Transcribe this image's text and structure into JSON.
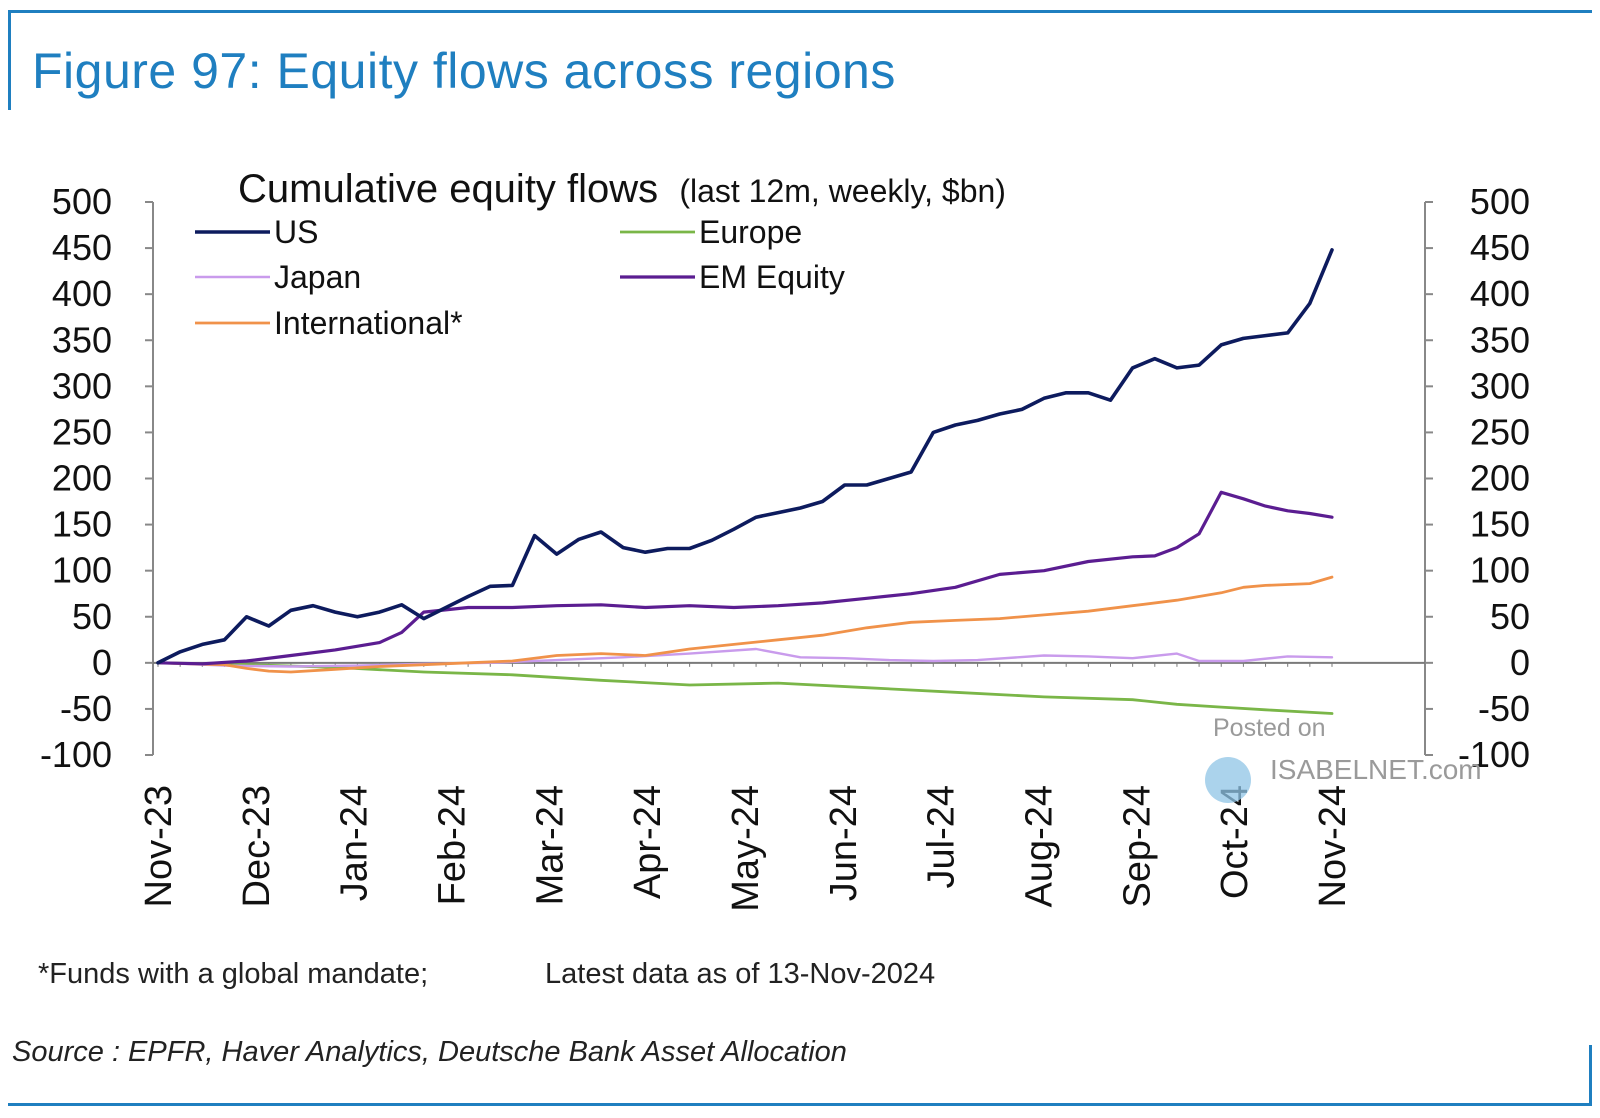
{
  "figure_title": "Figure 97: Equity flows across regions",
  "footnote_funds": "*Funds with a global mandate;",
  "footnote_latest": "Latest data as of 13-Nov-2024",
  "source": "Source : EPFR, Haver Analytics, Deutsche Bank Asset Allocation",
  "watermark": {
    "line1": "Posted on",
    "line2": "ISABELNET.com"
  },
  "colors": {
    "accent": "#1f7fc0"
  },
  "chart_data": {
    "type": "line",
    "title": "Cumulative equity flows",
    "subtitle": "(last 12m, weekly, $bn)",
    "xlabel": "",
    "ylabel": "",
    "ylim": [
      -100,
      500
    ],
    "yticks": [
      -100,
      -50,
      0,
      50,
      100,
      150,
      200,
      250,
      300,
      350,
      400,
      450,
      500
    ],
    "y_axes": "left and right (same scale)",
    "x_tick_labels": [
      "Nov-23",
      "Dec-23",
      "Jan-24",
      "Feb-24",
      "Mar-24",
      "Apr-24",
      "May-24",
      "Jun-24",
      "Jul-24",
      "Aug-24",
      "Sep-24",
      "Oct-24",
      "Nov-24"
    ],
    "x_week_range": [
      0,
      53
    ],
    "grid": false,
    "legend": "top-left, two columns",
    "series": [
      {
        "name": "US",
        "color": "#0d1b5e",
        "width": 3.6,
        "x": [
          0,
          1,
          2,
          3,
          4,
          5,
          6,
          7,
          8,
          9,
          10,
          11,
          12,
          13,
          14,
          15,
          16,
          17,
          18,
          19,
          20,
          21,
          22,
          23,
          24,
          25,
          26,
          27,
          28,
          29,
          30,
          31,
          32,
          33,
          34,
          35,
          36,
          37,
          38,
          39,
          40,
          41,
          42,
          43,
          44,
          45,
          46,
          47,
          48,
          49,
          50,
          51,
          52,
          53
        ],
        "values": [
          0,
          12,
          20,
          25,
          50,
          40,
          57,
          62,
          55,
          50,
          55,
          63,
          48,
          60,
          72,
          83,
          84,
          138,
          118,
          134,
          142,
          125,
          120,
          124,
          124,
          133,
          145,
          158,
          163,
          168,
          175,
          193,
          193,
          200,
          207,
          250,
          258,
          263,
          270,
          275,
          287,
          293,
          293,
          285,
          320,
          330,
          320,
          323,
          345,
          352,
          355,
          358,
          390,
          448
        ]
      },
      {
        "name": "Europe",
        "color": "#7ab648",
        "width": 2.8,
        "x": [
          0,
          4,
          8,
          12,
          16,
          20,
          24,
          28,
          32,
          36,
          40,
          44,
          46,
          48,
          50,
          53
        ],
        "values": [
          0,
          -2,
          -5,
          -10,
          -13,
          -19,
          -24,
          -22,
          -27,
          -32,
          -37,
          -40,
          -45,
          -48,
          -51,
          -55
        ]
      },
      {
        "name": "Japan",
        "color": "#c99bec",
        "width": 2.4,
        "x": [
          0,
          3,
          6,
          9,
          12,
          15,
          18,
          21,
          24,
          27,
          29,
          31,
          33,
          35,
          37,
          40,
          42,
          44,
          46,
          47,
          49,
          51,
          53
        ],
        "values": [
          0,
          -3,
          -4,
          -3,
          -1,
          0,
          3,
          6,
          10,
          15,
          6,
          5,
          3,
          2,
          3,
          8,
          7,
          5,
          10,
          2,
          2,
          7,
          6
        ]
      },
      {
        "name": "EM Equity",
        "color": "#5b1d91",
        "width": 3.2,
        "x": [
          0,
          2,
          4,
          6,
          8,
          10,
          11,
          12,
          14,
          16,
          18,
          20,
          22,
          24,
          26,
          28,
          30,
          32,
          34,
          36,
          38,
          40,
          42,
          44,
          45,
          46,
          47,
          48,
          49,
          50,
          51,
          52,
          53
        ],
        "values": [
          0,
          -1,
          2,
          8,
          14,
          22,
          33,
          55,
          60,
          60,
          62,
          63,
          60,
          62,
          60,
          62,
          65,
          70,
          75,
          82,
          96,
          100,
          110,
          115,
          116,
          125,
          140,
          185,
          178,
          170,
          165,
          162,
          158
        ]
      },
      {
        "name": "International*",
        "color": "#f0924a",
        "width": 2.8,
        "x": [
          0,
          3,
          4,
          5,
          6,
          8,
          10,
          12,
          14,
          16,
          18,
          20,
          22,
          24,
          26,
          28,
          30,
          32,
          34,
          36,
          38,
          40,
          42,
          44,
          46,
          48,
          49,
          50,
          52,
          53
        ],
        "values": [
          0,
          -2,
          -6,
          -9,
          -10,
          -7,
          -4,
          -2,
          0,
          2,
          8,
          10,
          8,
          15,
          20,
          25,
          30,
          38,
          44,
          46,
          48,
          52,
          56,
          62,
          68,
          76,
          82,
          84,
          86,
          93
        ]
      }
    ]
  }
}
